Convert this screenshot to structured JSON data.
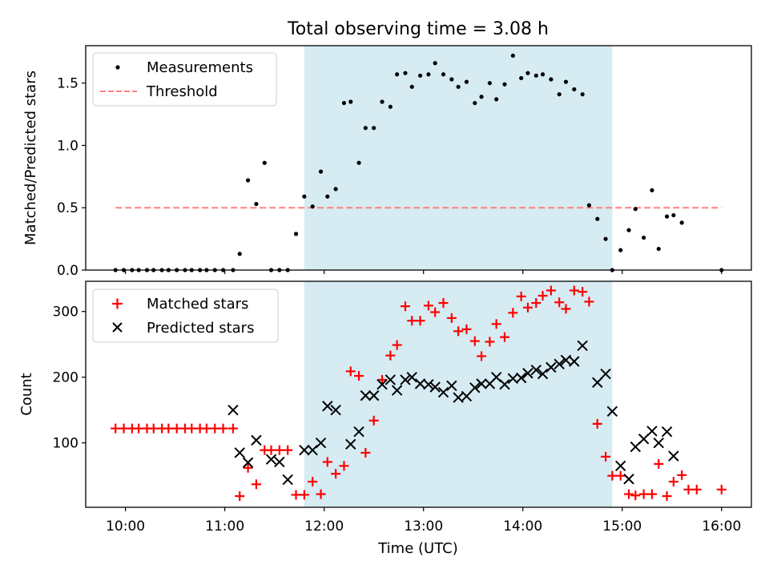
{
  "chart_data": [
    {
      "type": "scatter",
      "title": "Total observing time = 3.08 h",
      "xlabel": "",
      "ylabel": "Matched/Predicted stars",
      "xlim": [
        "09:36",
        "16:18"
      ],
      "ylim": [
        0,
        1.8
      ],
      "yticks": [
        0.0,
        0.5,
        1.0,
        1.5
      ],
      "ytick_labels": [
        "0.0",
        "0.5",
        "1.0",
        "1.5"
      ],
      "highlight_span": {
        "from": "11:48",
        "to": "14:54",
        "color": "#add8e6"
      },
      "legend": {
        "position": "upper-left",
        "entries": [
          "Measurements",
          "Threshold"
        ]
      },
      "threshold": {
        "name": "Threshold",
        "value": 0.5,
        "x_from": "09:54",
        "x_to": "16:00",
        "color": "#ff7f7f",
        "style": "dashed"
      },
      "series": [
        {
          "name": "Measurements",
          "marker": "dot",
          "color": "#000000",
          "points": [
            [
              "09:54",
              0
            ],
            [
              "09:59",
              0
            ],
            [
              "10:04",
              0
            ],
            [
              "10:08",
              0
            ],
            [
              "10:13",
              0
            ],
            [
              "10:17",
              0
            ],
            [
              "10:22",
              0
            ],
            [
              "10:26",
              0
            ],
            [
              "10:31",
              0
            ],
            [
              "10:36",
              0
            ],
            [
              "10:40",
              0
            ],
            [
              "10:45",
              0
            ],
            [
              "10:49",
              0
            ],
            [
              "10:54",
              0
            ],
            [
              "10:59",
              0
            ],
            [
              "11:05",
              0
            ],
            [
              "11:09",
              0.13
            ],
            [
              "11:14",
              0.72
            ],
            [
              "11:19",
              0.53
            ],
            [
              "11:24",
              0.86
            ],
            [
              "11:28",
              0
            ],
            [
              "11:33",
              0
            ],
            [
              "11:38",
              0
            ],
            [
              "11:43",
              0.29
            ],
            [
              "11:48",
              0.59
            ],
            [
              "11:53",
              0.51
            ],
            [
              "11:58",
              0.79
            ],
            [
              "12:02",
              0.59
            ],
            [
              "12:07",
              0.65
            ],
            [
              "12:12",
              1.34
            ],
            [
              "12:16",
              1.35
            ],
            [
              "12:21",
              0.86
            ],
            [
              "12:25",
              1.14
            ],
            [
              "12:30",
              1.14
            ],
            [
              "12:35",
              1.35
            ],
            [
              "12:40",
              1.31
            ],
            [
              "12:44",
              1.57
            ],
            [
              "12:49",
              1.58
            ],
            [
              "12:53",
              1.47
            ],
            [
              "12:58",
              1.56
            ],
            [
              "13:03",
              1.57
            ],
            [
              "13:07",
              1.66
            ],
            [
              "13:12",
              1.57
            ],
            [
              "13:17",
              1.53
            ],
            [
              "13:21",
              1.47
            ],
            [
              "13:26",
              1.51
            ],
            [
              "13:31",
              1.34
            ],
            [
              "13:35",
              1.39
            ],
            [
              "13:40",
              1.5
            ],
            [
              "13:44",
              1.37
            ],
            [
              "13:49",
              1.49
            ],
            [
              "13:54",
              1.72
            ],
            [
              "13:59",
              1.54
            ],
            [
              "14:03",
              1.58
            ],
            [
              "14:08",
              1.56
            ],
            [
              "14:12",
              1.57
            ],
            [
              "14:17",
              1.53
            ],
            [
              "14:22",
              1.41
            ],
            [
              "14:26",
              1.51
            ],
            [
              "14:31",
              1.45
            ],
            [
              "14:36",
              1.41
            ],
            [
              "14:40",
              0.52
            ],
            [
              "14:45",
              0.41
            ],
            [
              "14:50",
              0.25
            ],
            [
              "14:54",
              0.0
            ],
            [
              "14:59",
              0.16
            ],
            [
              "15:04",
              0.32
            ],
            [
              "15:08",
              0.49
            ],
            [
              "15:13",
              0.26
            ],
            [
              "15:18",
              0.64
            ],
            [
              "15:22",
              0.17
            ],
            [
              "15:27",
              0.43
            ],
            [
              "15:31",
              0.44
            ],
            [
              "15:36",
              0.38
            ],
            [
              "16:00",
              0
            ]
          ]
        }
      ]
    },
    {
      "type": "scatter",
      "title": "",
      "xlabel": "Time (UTC)",
      "ylabel": "Count",
      "xlim": [
        "09:36",
        "16:18"
      ],
      "ylim": [
        2,
        346
      ],
      "yticks": [
        100,
        200,
        300
      ],
      "ytick_labels": [
        "100",
        "200",
        "300"
      ],
      "xticks": [
        "10:00",
        "11:00",
        "12:00",
        "13:00",
        "14:00",
        "15:00",
        "16:00"
      ],
      "xtick_labels": [
        "10:00",
        "11:00",
        "12:00",
        "13:00",
        "14:00",
        "15:00",
        "16:00"
      ],
      "highlight_span": {
        "from": "11:48",
        "to": "14:54",
        "color": "#add8e6"
      },
      "legend": {
        "position": "upper-left",
        "entries": [
          "Matched stars",
          "Predicted stars"
        ]
      },
      "series": [
        {
          "name": "Matched stars",
          "marker": "plus",
          "color": "#ff0000",
          "points": [
            [
              "09:54",
              122
            ],
            [
              "09:59",
              122
            ],
            [
              "10:04",
              122
            ],
            [
              "10:08",
              122
            ],
            [
              "10:13",
              122
            ],
            [
              "10:17",
              122
            ],
            [
              "10:22",
              122
            ],
            [
              "10:26",
              122
            ],
            [
              "10:31",
              122
            ],
            [
              "10:36",
              122
            ],
            [
              "10:40",
              122
            ],
            [
              "10:45",
              122
            ],
            [
              "10:49",
              122
            ],
            [
              "10:54",
              122
            ],
            [
              "10:59",
              122
            ],
            [
              "11:05",
              122
            ],
            [
              "11:09",
              19
            ],
            [
              "11:14",
              62
            ],
            [
              "11:19",
              37
            ],
            [
              "11:24",
              89
            ],
            [
              "11:28",
              89
            ],
            [
              "11:33",
              89
            ],
            [
              "11:38",
              89
            ],
            [
              "11:43",
              21
            ],
            [
              "11:48",
              21
            ],
            [
              "11:53",
              41
            ],
            [
              "11:58",
              22
            ],
            [
              "12:02",
              71
            ],
            [
              "12:07",
              53
            ],
            [
              "12:12",
              65
            ],
            [
              "12:16",
              209
            ],
            [
              "12:21",
              202
            ],
            [
              "12:25",
              85
            ],
            [
              "12:30",
              134
            ],
            [
              "12:35",
              196
            ],
            [
              "12:40",
              233
            ],
            [
              "12:44",
              249
            ],
            [
              "12:49",
              308
            ],
            [
              "12:53",
              286
            ],
            [
              "12:58",
              286
            ],
            [
              "13:03",
              309
            ],
            [
              "13:07",
              299
            ],
            [
              "13:12",
              313
            ],
            [
              "13:17",
              290
            ],
            [
              "13:21",
              270
            ],
            [
              "13:26",
              273
            ],
            [
              "13:31",
              255
            ],
            [
              "13:35",
              232
            ],
            [
              "13:40",
              254
            ],
            [
              "13:44",
              281
            ],
            [
              "13:49",
              261
            ],
            [
              "13:54",
              298
            ],
            [
              "13:59",
              323
            ],
            [
              "14:03",
              306
            ],
            [
              "14:08",
              313
            ],
            [
              "14:12",
              324
            ],
            [
              "14:17",
              332
            ],
            [
              "14:22",
              314
            ],
            [
              "14:26",
              304
            ],
            [
              "14:31",
              332
            ],
            [
              "14:36",
              330
            ],
            [
              "14:40",
              315
            ],
            [
              "14:45",
              129
            ],
            [
              "14:50",
              79
            ],
            [
              "14:54",
              50
            ],
            [
              "14:59",
              50
            ],
            [
              "15:04",
              22
            ],
            [
              "15:08",
              20
            ],
            [
              "15:13",
              22
            ],
            [
              "15:18",
              22
            ],
            [
              "15:22",
              68
            ],
            [
              "15:27",
              19
            ],
            [
              "15:31",
              41
            ],
            [
              "15:36",
              51
            ],
            [
              "15:40",
              29
            ],
            [
              "15:45",
              29
            ],
            [
              "16:00",
              29
            ]
          ]
        },
        {
          "name": "Predicted stars",
          "marker": "cross",
          "color": "#000000",
          "points": [
            [
              "11:05",
              150
            ],
            [
              "11:09",
              85
            ],
            [
              "11:14",
              70
            ],
            [
              "11:19",
              104
            ],
            [
              "11:28",
              75
            ],
            [
              "11:33",
              71
            ],
            [
              "11:38",
              44
            ],
            [
              "11:48",
              89
            ],
            [
              "11:53",
              89
            ],
            [
              "11:58",
              100
            ],
            [
              "12:02",
              156
            ],
            [
              "12:07",
              150
            ],
            [
              "12:16",
              98
            ],
            [
              "12:21",
              117
            ],
            [
              "12:25",
              172
            ],
            [
              "12:30",
              172
            ],
            [
              "12:35",
              189
            ],
            [
              "12:40",
              196
            ],
            [
              "12:44",
              180
            ],
            [
              "12:49",
              196
            ],
            [
              "12:53",
              200
            ],
            [
              "12:58",
              190
            ],
            [
              "13:03",
              189
            ],
            [
              "13:07",
              185
            ],
            [
              "13:12",
              177
            ],
            [
              "13:17",
              187
            ],
            [
              "13:21",
              169
            ],
            [
              "13:26",
              171
            ],
            [
              "13:31",
              184
            ],
            [
              "13:35",
              190
            ],
            [
              "13:40",
              190
            ],
            [
              "13:44",
              200
            ],
            [
              "13:49",
              189
            ],
            [
              "13:54",
              198
            ],
            [
              "13:59",
              199
            ],
            [
              "14:03",
              206
            ],
            [
              "14:08",
              211
            ],
            [
              "14:12",
              205
            ],
            [
              "14:17",
              215
            ],
            [
              "14:22",
              220
            ],
            [
              "14:26",
              226
            ],
            [
              "14:31",
              224
            ],
            [
              "14:36",
              248
            ],
            [
              "14:45",
              192
            ],
            [
              "14:50",
              205
            ],
            [
              "14:54",
              148
            ],
            [
              "14:59",
              65
            ],
            [
              "15:04",
              45
            ],
            [
              "15:08",
              94
            ],
            [
              "15:13",
              106
            ],
            [
              "15:18",
              118
            ],
            [
              "15:22",
              100
            ],
            [
              "15:27",
              117
            ],
            [
              "15:31",
              80
            ]
          ]
        }
      ]
    }
  ]
}
